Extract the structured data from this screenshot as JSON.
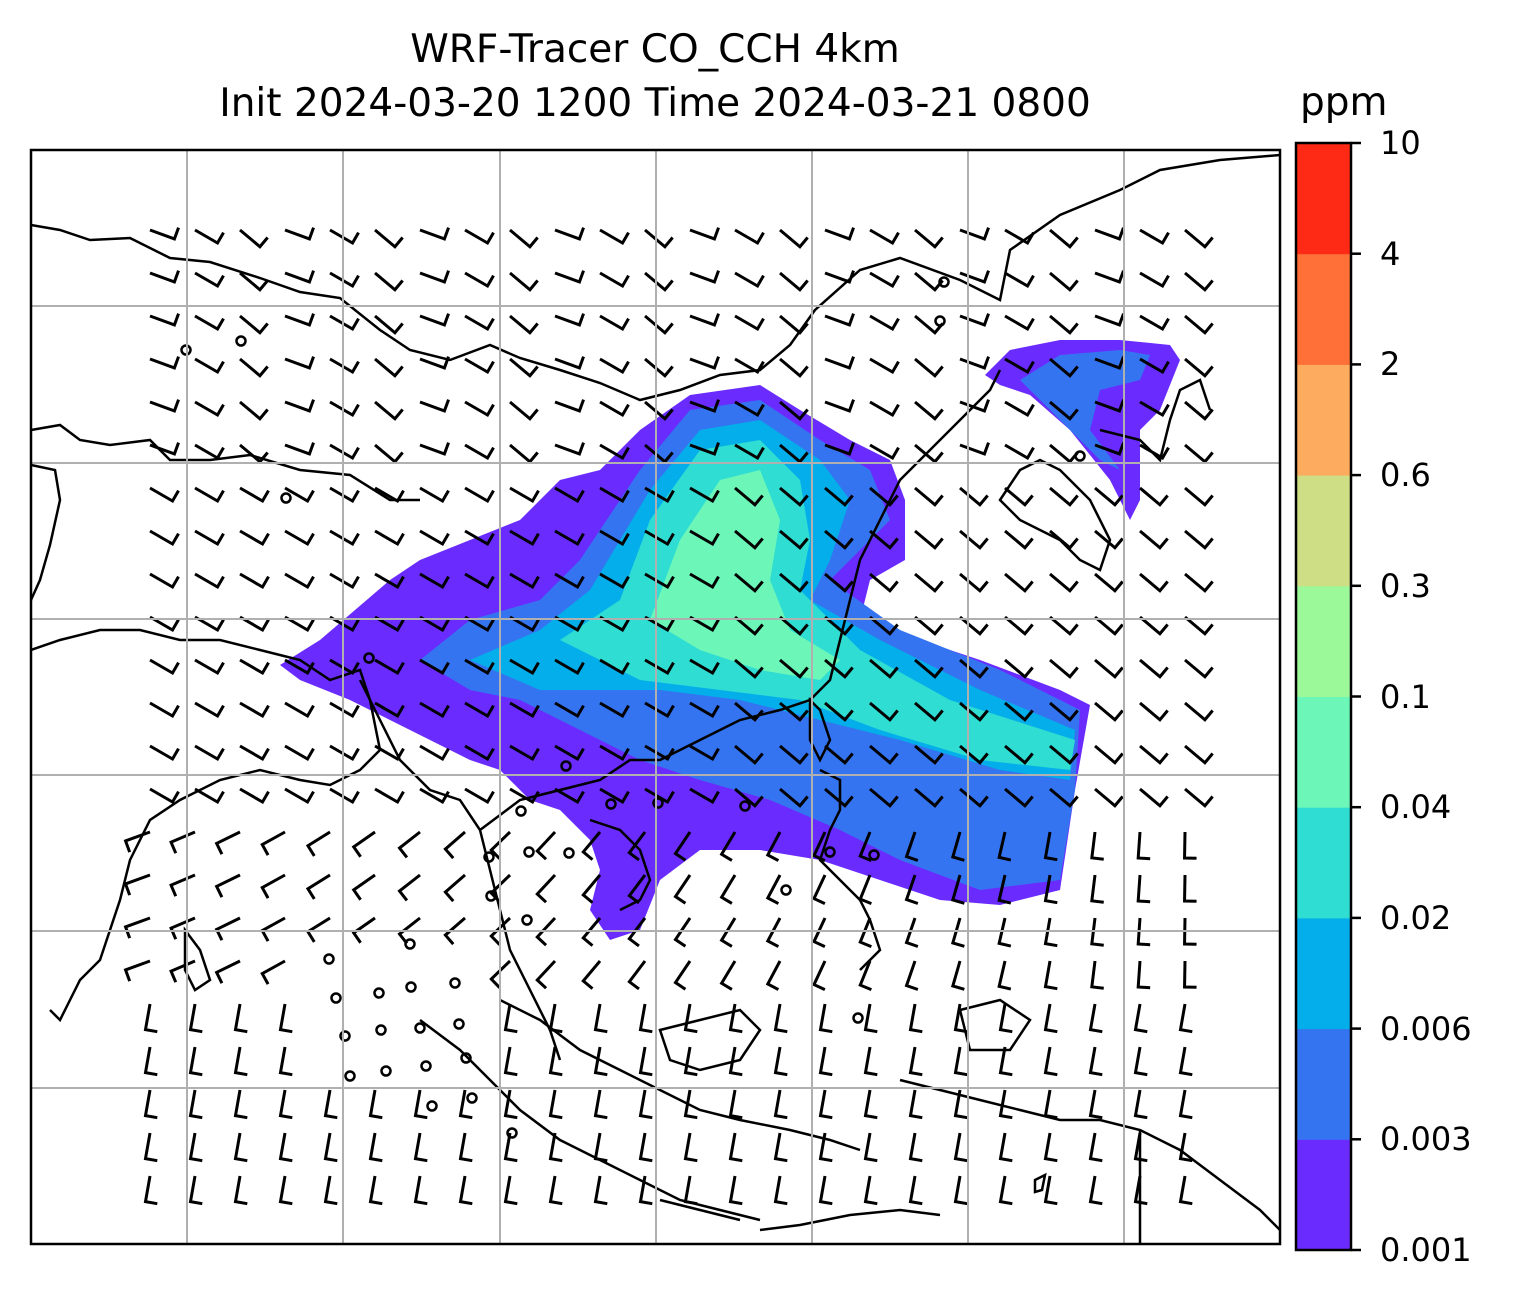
{
  "title": {
    "line1": "WRF-Tracer CO_CCH 4km",
    "line2": "Init 2024-03-20 1200 Time 2024-03-21 0800"
  },
  "colorbar": {
    "unit": "ppm",
    "levels": [
      "0.001",
      "0.003",
      "0.006",
      "0.02",
      "0.04",
      "0.1",
      "0.3",
      "0.6",
      "2",
      "4",
      "10"
    ],
    "colors": [
      "#6a2bff",
      "#3574f0",
      "#04aeea",
      "#2fddd2",
      "#6cf7b9",
      "#9cf99a",
      "#cede85",
      "#fdab5e",
      "#ff7039",
      "#ff2a16"
    ]
  },
  "map": {
    "gridlines": true,
    "coastline_color": "#000000",
    "plume_description_colors": {
      "outer": "#6a2bff",
      "mid": "#3574f0",
      "inner": "#04aeea",
      "core": "#2fddd2",
      "peak": "#6cf7b9"
    }
  }
}
